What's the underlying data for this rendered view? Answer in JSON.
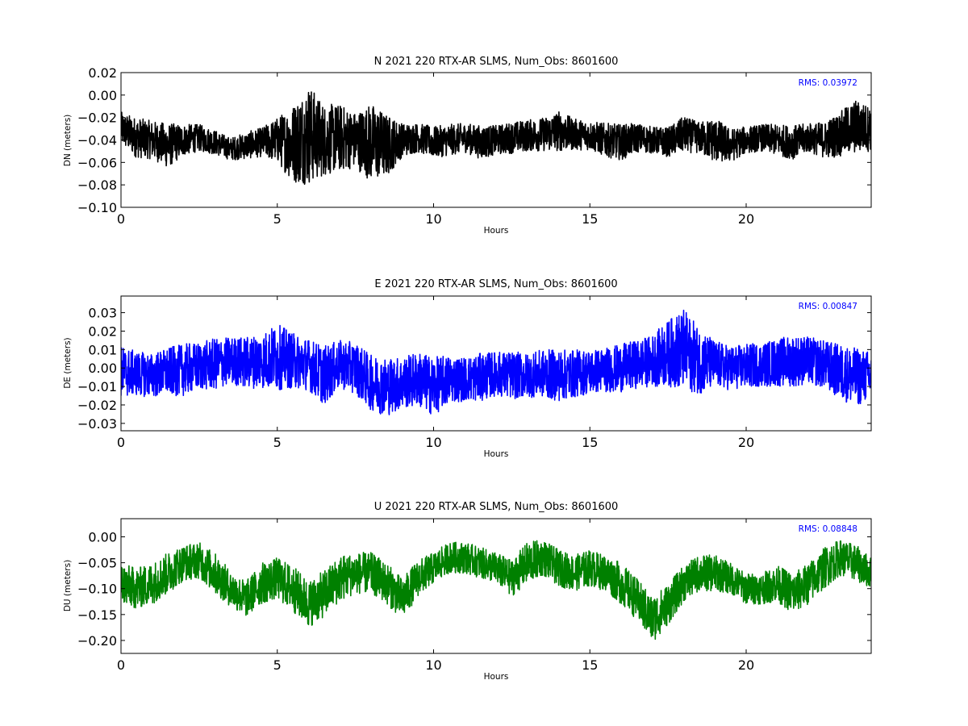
{
  "chart_data": [
    {
      "type": "line",
      "title": "N 2021 220 RTX-AR  SLMS, Num_Obs: 8601600",
      "xlabel": "Hours",
      "ylabel": "DN (meters)",
      "xlim": [
        0,
        24
      ],
      "ylim": [
        -0.1,
        0.02
      ],
      "xticks": [
        0,
        5,
        10,
        15,
        20
      ],
      "yticks": [
        -0.1,
        -0.08,
        -0.06,
        -0.04,
        -0.02,
        0.0,
        0.02
      ],
      "ytick_labels": [
        "−0.10",
        "−0.08",
        "−0.06",
        "−0.04",
        "−0.02",
        "0.00",
        "0.02"
      ],
      "annotation": "RMS:  0.03972",
      "grid": false,
      "color": "#000000",
      "series": [
        {
          "x": [
            0,
            0.5,
            1,
            1.5,
            2,
            2.5,
            3,
            3.5,
            4,
            4.5,
            5,
            5.5,
            6,
            6.5,
            7,
            7.5,
            8,
            8.5,
            9,
            9.5,
            10,
            10.5,
            11,
            11.5,
            12,
            12.5,
            13,
            13.5,
            14,
            14.5,
            15,
            15.5,
            16,
            16.5,
            17,
            17.5,
            18,
            18.5,
            19,
            19.5,
            20,
            20.5,
            21,
            21.5,
            22,
            22.5,
            23,
            23.5,
            24
          ],
          "mean": [
            -0.03,
            -0.038,
            -0.04,
            -0.045,
            -0.04,
            -0.038,
            -0.042,
            -0.048,
            -0.045,
            -0.042,
            -0.04,
            -0.043,
            -0.035,
            -0.04,
            -0.038,
            -0.04,
            -0.042,
            -0.045,
            -0.04,
            -0.038,
            -0.042,
            -0.04,
            -0.038,
            -0.042,
            -0.04,
            -0.038,
            -0.036,
            -0.035,
            -0.032,
            -0.035,
            -0.036,
            -0.04,
            -0.042,
            -0.038,
            -0.04,
            -0.042,
            -0.035,
            -0.038,
            -0.04,
            -0.045,
            -0.04,
            -0.038,
            -0.04,
            -0.042,
            -0.038,
            -0.04,
            -0.035,
            -0.028,
            -0.03
          ],
          "amp": [
            0.015,
            0.018,
            0.017,
            0.02,
            0.014,
            0.012,
            0.011,
            0.01,
            0.012,
            0.013,
            0.02,
            0.035,
            0.045,
            0.032,
            0.03,
            0.025,
            0.035,
            0.028,
            0.015,
            0.013,
            0.014,
            0.014,
            0.013,
            0.015,
            0.013,
            0.014,
            0.014,
            0.015,
            0.018,
            0.014,
            0.013,
            0.015,
            0.016,
            0.013,
            0.012,
            0.013,
            0.016,
            0.014,
            0.02,
            0.015,
            0.012,
            0.012,
            0.014,
            0.015,
            0.013,
            0.016,
            0.02,
            0.024,
            0.02
          ]
        }
      ]
    },
    {
      "type": "line",
      "title": "E 2021 220 RTX-AR  SLMS, Num_Obs: 8601600",
      "xlabel": "Hours",
      "ylabel": "DE (meters)",
      "xlim": [
        0,
        24
      ],
      "ylim": [
        -0.034,
        0.039
      ],
      "xticks": [
        0,
        5,
        10,
        15,
        20
      ],
      "yticks": [
        -0.03,
        -0.02,
        -0.01,
        0.0,
        0.01,
        0.02,
        0.03
      ],
      "ytick_labels": [
        "−0.03",
        "−0.02",
        "−0.01",
        "0.00",
        "0.01",
        "0.02",
        "0.03"
      ],
      "annotation": "RMS:  0.00847",
      "grid": false,
      "color": "#0000ff",
      "series": [
        {
          "x": [
            0,
            0.5,
            1,
            1.5,
            2,
            2.5,
            3,
            3.5,
            4,
            4.5,
            5,
            5.5,
            6,
            6.5,
            7,
            7.5,
            8,
            8.5,
            9,
            9.5,
            10,
            10.5,
            11,
            11.5,
            12,
            12.5,
            13,
            13.5,
            14,
            14.5,
            15,
            15.5,
            16,
            16.5,
            17,
            17.5,
            18,
            18.5,
            19,
            19.5,
            20,
            20.5,
            21,
            21.5,
            22,
            22.5,
            23,
            23.5,
            24
          ],
          "mean": [
            -0.002,
            -0.003,
            -0.004,
            -0.002,
            -0.001,
            0.001,
            0.002,
            0.004,
            0.003,
            0.004,
            0.006,
            0.004,
            0.002,
            -0.004,
            0.002,
            0.0,
            -0.008,
            -0.01,
            -0.008,
            -0.006,
            -0.01,
            -0.006,
            -0.006,
            -0.005,
            -0.003,
            -0.004,
            -0.004,
            -0.003,
            -0.004,
            -0.003,
            -0.002,
            -0.001,
            0.0,
            0.002,
            0.004,
            0.008,
            0.01,
            0.004,
            0.002,
            0.0,
            0.001,
            0.002,
            0.003,
            0.004,
            0.004,
            0.002,
            -0.002,
            -0.005,
            -0.004
          ],
          "amp": [
            0.014,
            0.012,
            0.012,
            0.013,
            0.014,
            0.013,
            0.014,
            0.013,
            0.014,
            0.015,
            0.018,
            0.015,
            0.014,
            0.016,
            0.013,
            0.014,
            0.015,
            0.016,
            0.014,
            0.015,
            0.016,
            0.013,
            0.012,
            0.013,
            0.012,
            0.013,
            0.012,
            0.013,
            0.014,
            0.013,
            0.012,
            0.012,
            0.013,
            0.013,
            0.014,
            0.018,
            0.022,
            0.018,
            0.013,
            0.012,
            0.012,
            0.012,
            0.013,
            0.014,
            0.013,
            0.013,
            0.015,
            0.016,
            0.013
          ]
        }
      ]
    },
    {
      "type": "line",
      "title": "U 2021 220 RTX-AR  SLMS, Num_Obs: 8601600",
      "xlabel": "Hours",
      "ylabel": "DU (meters)",
      "xlim": [
        0,
        24
      ],
      "ylim": [
        -0.225,
        0.035
      ],
      "xticks": [
        0,
        5,
        10,
        15,
        20
      ],
      "yticks": [
        -0.2,
        -0.15,
        -0.1,
        -0.05,
        0.0
      ],
      "ytick_labels": [
        "−0.20",
        "−0.15",
        "−0.10",
        "−0.05",
        "0.00"
      ],
      "annotation": "RMS:  0.08848",
      "grid": false,
      "color": "#008000",
      "series": [
        {
          "x": [
            0,
            0.5,
            1,
            1.5,
            2,
            2.5,
            3,
            3.5,
            4,
            4.5,
            5,
            5.5,
            6,
            6.5,
            7,
            7.5,
            8,
            8.5,
            9,
            9.5,
            10,
            10.5,
            11,
            11.5,
            12,
            12.5,
            13,
            13.5,
            14,
            14.5,
            15,
            15.5,
            16,
            16.5,
            17,
            17.5,
            18,
            18.5,
            19,
            19.5,
            20,
            20.5,
            21,
            21.5,
            22,
            22.5,
            23,
            23.5,
            24
          ],
          "mean": [
            -0.09,
            -0.1,
            -0.09,
            -0.07,
            -0.05,
            -0.045,
            -0.07,
            -0.1,
            -0.12,
            -0.09,
            -0.08,
            -0.1,
            -0.13,
            -0.11,
            -0.08,
            -0.07,
            -0.07,
            -0.09,
            -0.12,
            -0.08,
            -0.06,
            -0.04,
            -0.04,
            -0.05,
            -0.06,
            -0.08,
            -0.05,
            -0.04,
            -0.06,
            -0.07,
            -0.06,
            -0.07,
            -0.09,
            -0.12,
            -0.16,
            -0.13,
            -0.09,
            -0.07,
            -0.07,
            -0.08,
            -0.1,
            -0.1,
            -0.09,
            -0.11,
            -0.09,
            -0.06,
            -0.04,
            -0.05,
            -0.07
          ],
          "amp": [
            0.04,
            0.04,
            0.04,
            0.04,
            0.035,
            0.035,
            0.04,
            0.035,
            0.035,
            0.04,
            0.04,
            0.045,
            0.045,
            0.045,
            0.045,
            0.04,
            0.04,
            0.04,
            0.04,
            0.035,
            0.03,
            0.03,
            0.03,
            0.03,
            0.03,
            0.035,
            0.04,
            0.035,
            0.035,
            0.035,
            0.035,
            0.035,
            0.04,
            0.04,
            0.045,
            0.04,
            0.035,
            0.035,
            0.035,
            0.03,
            0.03,
            0.03,
            0.035,
            0.04,
            0.04,
            0.04,
            0.035,
            0.035,
            0.03
          ]
        }
      ]
    }
  ]
}
